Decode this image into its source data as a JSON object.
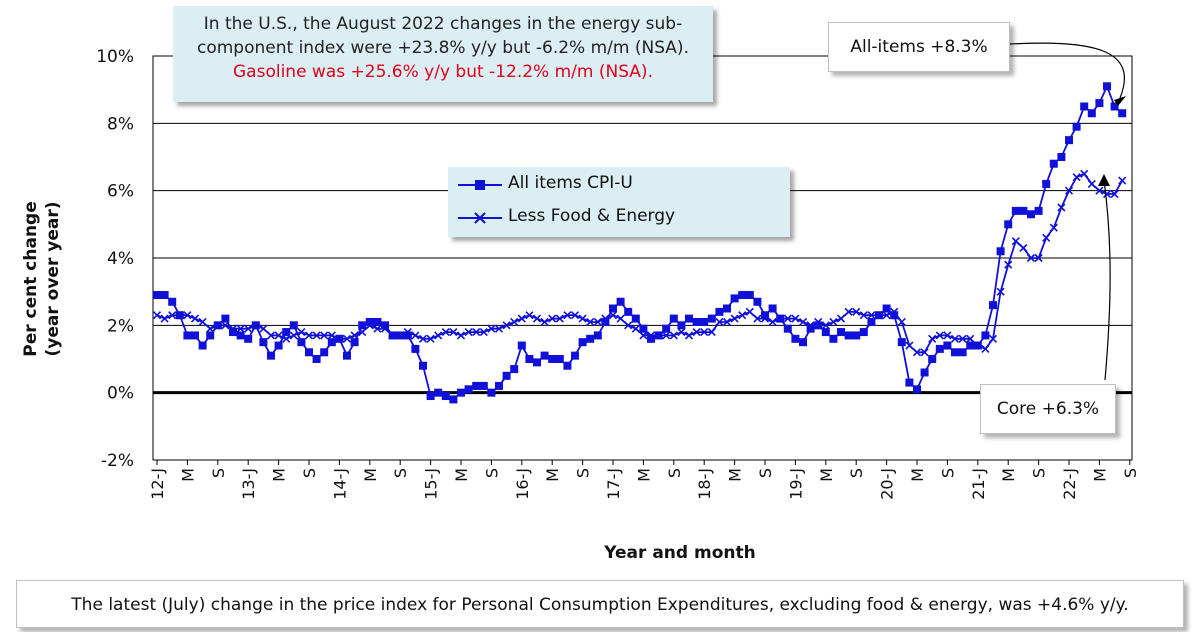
{
  "annotation": {
    "line1": "In the U.S., the August 2022 changes in the energy sub-",
    "line2": "component index were +23.8% y/y but -6.2% m/m (NSA).",
    "line3": "Gasoline was +25.6% y/y but -12.2% m/m (NSA)."
  },
  "callouts": {
    "all_items": "All-items +8.3%",
    "core": "Core +6.3%"
  },
  "footer": "The latest (July) change in the price index for Personal Consumption Expenditures, excluding food & energy, was +4.6% y/y.",
  "colors": {
    "series": "#1010d8",
    "zero_line": "#000000",
    "red_text": "#e3001b",
    "box_fill": "#dbeef3"
  },
  "chart_data": {
    "type": "line",
    "title": "",
    "xlabel": "Year and month",
    "ylabel_line1": "Per cent change",
    "ylabel_line2": "(year over year)",
    "ylim": [
      -2,
      10
    ],
    "yticks": [
      "-2%",
      "0%",
      "2%",
      "4%",
      "6%",
      "8%",
      "10%"
    ],
    "grid": true,
    "legend": "center",
    "x_tick_labels": [
      "12-J",
      "M",
      "S",
      "13-J",
      "M",
      "S",
      "14-J",
      "M",
      "S",
      "15-J",
      "M",
      "S",
      "16-J",
      "M",
      "S",
      "17-J",
      "M",
      "S",
      "18-J",
      "M",
      "S",
      "19-J",
      "M",
      "S",
      "20-J",
      "M",
      "S",
      "21-J",
      "M",
      "S",
      "22-J",
      "M",
      "S"
    ],
    "x_start": "2012-01",
    "x_frequency": "monthly",
    "series": [
      {
        "name": "All items CPI-U",
        "marker": "square",
        "values": [
          2.9,
          2.9,
          2.7,
          2.3,
          1.7,
          1.7,
          1.4,
          1.7,
          2.0,
          2.2,
          1.8,
          1.7,
          1.6,
          2.0,
          1.5,
          1.1,
          1.4,
          1.8,
          2.0,
          1.5,
          1.2,
          1.0,
          1.2,
          1.5,
          1.6,
          1.1,
          1.5,
          2.0,
          2.1,
          2.1,
          2.0,
          1.7,
          1.7,
          1.7,
          1.3,
          0.8,
          -0.1,
          0.0,
          -0.1,
          -0.2,
          0.0,
          0.1,
          0.2,
          0.2,
          0.0,
          0.2,
          0.5,
          0.7,
          1.4,
          1.0,
          0.9,
          1.1,
          1.0,
          1.0,
          0.8,
          1.1,
          1.5,
          1.6,
          1.7,
          2.1,
          2.5,
          2.7,
          2.4,
          2.2,
          1.9,
          1.6,
          1.7,
          1.9,
          2.2,
          2.0,
          2.2,
          2.1,
          2.1,
          2.2,
          2.4,
          2.5,
          2.8,
          2.9,
          2.9,
          2.7,
          2.3,
          2.5,
          2.2,
          1.9,
          1.6,
          1.5,
          1.9,
          2.0,
          1.8,
          1.6,
          1.8,
          1.7,
          1.7,
          1.8,
          2.1,
          2.3,
          2.5,
          2.3,
          1.5,
          0.3,
          0.1,
          0.6,
          1.0,
          1.3,
          1.4,
          1.2,
          1.2,
          1.4,
          1.4,
          1.7,
          2.6,
          4.2,
          5.0,
          5.4,
          5.4,
          5.3,
          5.4,
          6.2,
          6.8,
          7.0,
          7.5,
          7.9,
          8.5,
          8.3,
          8.6,
          9.1,
          8.5,
          8.3
        ]
      },
      {
        "name": "Less Food & Energy",
        "marker": "x",
        "values": [
          2.3,
          2.2,
          2.3,
          2.3,
          2.3,
          2.2,
          2.1,
          1.9,
          2.0,
          2.0,
          1.9,
          1.9,
          1.9,
          2.0,
          1.9,
          1.7,
          1.7,
          1.6,
          1.7,
          1.8,
          1.7,
          1.7,
          1.7,
          1.7,
          1.6,
          1.6,
          1.7,
          1.8,
          2.0,
          1.9,
          1.9,
          1.7,
          1.7,
          1.8,
          1.7,
          1.6,
          1.6,
          1.7,
          1.8,
          1.8,
          1.7,
          1.8,
          1.8,
          1.8,
          1.9,
          1.9,
          2.0,
          2.1,
          2.2,
          2.3,
          2.2,
          2.1,
          2.2,
          2.2,
          2.3,
          2.3,
          2.2,
          2.1,
          2.1,
          2.2,
          2.3,
          2.2,
          2.0,
          1.9,
          1.7,
          1.7,
          1.7,
          1.7,
          1.7,
          1.8,
          1.7,
          1.8,
          1.8,
          1.8,
          2.1,
          2.1,
          2.2,
          2.3,
          2.4,
          2.2,
          2.2,
          2.1,
          2.2,
          2.2,
          2.2,
          2.1,
          2.0,
          2.1,
          2.0,
          2.1,
          2.2,
          2.4,
          2.4,
          2.3,
          2.3,
          2.3,
          2.3,
          2.4,
          2.1,
          1.4,
          1.2,
          1.2,
          1.6,
          1.7,
          1.7,
          1.6,
          1.6,
          1.6,
          1.4,
          1.3,
          1.6,
          3.0,
          3.8,
          4.5,
          4.3,
          4.0,
          4.0,
          4.6,
          4.9,
          5.5,
          6.0,
          6.4,
          6.5,
          6.2,
          6.0,
          5.9,
          5.9,
          6.3
        ]
      }
    ]
  }
}
